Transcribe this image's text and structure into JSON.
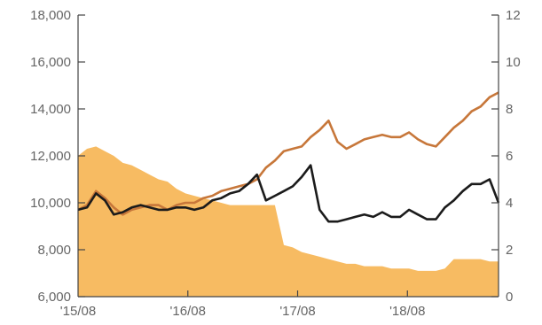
{
  "chart_data": {
    "type": "line",
    "title": "",
    "xlabel": "",
    "ylabel_left": "",
    "ylabel_right": "",
    "x_ticks": [
      "'15/08",
      "'16/08",
      "'17/08",
      "'18/08"
    ],
    "left_axis": {
      "range": [
        6000,
        18000
      ],
      "ticks": [
        "6,000",
        "8,000",
        "10,000",
        "12,000",
        "14,000",
        "16,000",
        "18,000"
      ]
    },
    "right_axis": {
      "range": [
        0,
        12
      ],
      "ticks": [
        "0",
        "2",
        "4",
        "6",
        "8",
        "10",
        "12"
      ]
    },
    "grid": false,
    "legend": "none",
    "colors": {
      "area": "#f7bb62",
      "orange_line": "#c7773a",
      "black_line": "#1b1b1b"
    },
    "x_range": [
      "2015-08",
      "2019-07"
    ],
    "series": [
      {
        "type": "area",
        "axis": "right",
        "color": "#f7bb62",
        "x": [
          "2015-08",
          "2015-09",
          "2015-10",
          "2015-11",
          "2015-12",
          "2016-01",
          "2016-02",
          "2016-03",
          "2016-04",
          "2016-05",
          "2016-06",
          "2016-07",
          "2016-08",
          "2016-09",
          "2016-10",
          "2016-11",
          "2016-12",
          "2017-01",
          "2017-02",
          "2017-03",
          "2017-04",
          "2017-05",
          "2017-06",
          "2017-07",
          "2017-08",
          "2017-09",
          "2017-10",
          "2017-11",
          "2017-12",
          "2018-01",
          "2018-02",
          "2018-03",
          "2018-04",
          "2018-05",
          "2018-06",
          "2018-07",
          "2018-08",
          "2018-09",
          "2018-10",
          "2018-11",
          "2018-12",
          "2019-01",
          "2019-02",
          "2019-03",
          "2019-04",
          "2019-05",
          "2019-06",
          "2019-07"
        ],
        "values": [
          6.0,
          6.3,
          6.4,
          6.2,
          6.0,
          5.7,
          5.6,
          5.4,
          5.2,
          5.0,
          4.9,
          4.6,
          4.4,
          4.3,
          4.2,
          4.1,
          4.0,
          3.9,
          3.9,
          3.9,
          3.9,
          3.9,
          3.9,
          2.2,
          2.1,
          1.9,
          1.8,
          1.7,
          1.6,
          1.5,
          1.4,
          1.4,
          1.3,
          1.3,
          1.3,
          1.2,
          1.2,
          1.2,
          1.1,
          1.1,
          1.1,
          1.2,
          1.6,
          1.6,
          1.6,
          1.6,
          1.5,
          1.5
        ]
      },
      {
        "type": "line",
        "axis": "left",
        "color": "#c7773a",
        "x": [
          "2015-08",
          "2015-09",
          "2015-10",
          "2015-11",
          "2015-12",
          "2016-01",
          "2016-02",
          "2016-03",
          "2016-04",
          "2016-05",
          "2016-06",
          "2016-07",
          "2016-08",
          "2016-09",
          "2016-10",
          "2016-11",
          "2016-12",
          "2017-01",
          "2017-02",
          "2017-03",
          "2017-04",
          "2017-05",
          "2017-06",
          "2017-07",
          "2017-08",
          "2017-09",
          "2017-10",
          "2017-11",
          "2017-12",
          "2018-01",
          "2018-02",
          "2018-03",
          "2018-04",
          "2018-05",
          "2018-06",
          "2018-07",
          "2018-08",
          "2018-09",
          "2018-10",
          "2018-11",
          "2018-12",
          "2019-01",
          "2019-02",
          "2019-03",
          "2019-04",
          "2019-05",
          "2019-06",
          "2019-07"
        ],
        "values": [
          9700,
          9900,
          10500,
          10200,
          9800,
          9500,
          9700,
          9800,
          9900,
          9900,
          9700,
          9900,
          10000,
          10000,
          10200,
          10300,
          10500,
          10600,
          10700,
          10800,
          11000,
          11500,
          11800,
          12200,
          12300,
          12400,
          12800,
          13100,
          13500,
          12600,
          12300,
          12500,
          12700,
          12800,
          12900,
          12800,
          12800,
          13000,
          12700,
          12500,
          12400,
          12800,
          13200,
          13500,
          13900,
          14100,
          14500,
          14700
        ]
      },
      {
        "type": "line",
        "axis": "left",
        "color": "#1b1b1b",
        "x": [
          "2015-08",
          "2015-09",
          "2015-10",
          "2015-11",
          "2015-12",
          "2016-01",
          "2016-02",
          "2016-03",
          "2016-04",
          "2016-05",
          "2016-06",
          "2016-07",
          "2016-08",
          "2016-09",
          "2016-10",
          "2016-11",
          "2016-12",
          "2017-01",
          "2017-02",
          "2017-03",
          "2017-04",
          "2017-05",
          "2017-06",
          "2017-07",
          "2017-08",
          "2017-09",
          "2017-10",
          "2017-11",
          "2017-12",
          "2018-01",
          "2018-02",
          "2018-03",
          "2018-04",
          "2018-05",
          "2018-06",
          "2018-07",
          "2018-08",
          "2018-09",
          "2018-10",
          "2018-11",
          "2018-12",
          "2019-01",
          "2019-02",
          "2019-03",
          "2019-04",
          "2019-05",
          "2019-06",
          "2019-07"
        ],
        "values": [
          9700,
          9800,
          10400,
          10100,
          9500,
          9600,
          9800,
          9900,
          9800,
          9700,
          9700,
          9800,
          9800,
          9700,
          9800,
          10100,
          10200,
          10400,
          10500,
          10800,
          11200,
          10100,
          10300,
          10500,
          10700,
          11100,
          11600,
          9700,
          9200,
          9200,
          9300,
          9400,
          9500,
          9400,
          9600,
          9400,
          9400,
          9700,
          9500,
          9300,
          9300,
          9800,
          10100,
          10500,
          10800,
          10800,
          11000,
          10000
        ]
      }
    ]
  }
}
